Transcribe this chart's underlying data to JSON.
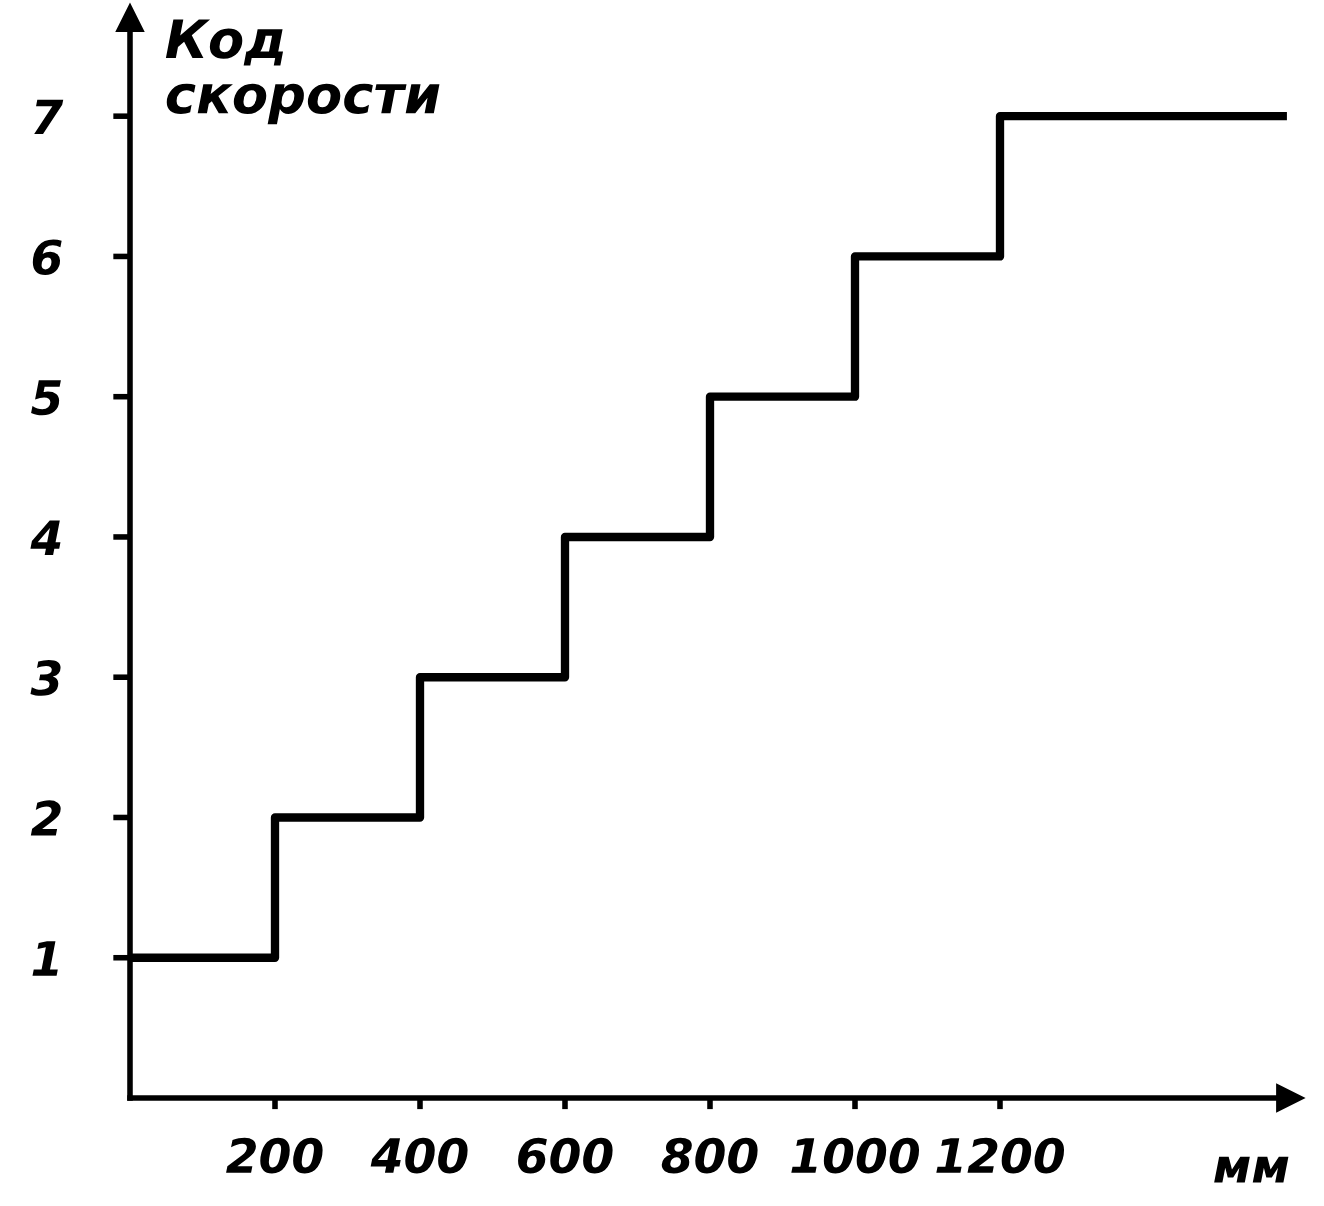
{
  "chart_data": {
    "type": "step",
    "xlabel": "мм",
    "ylabel": "Код\nскорости",
    "x": [
      0,
      200,
      400,
      600,
      800,
      1000,
      1200,
      1590
    ],
    "series": [
      {
        "color": "#000000",
        "values": [
          1,
          2,
          3,
          4,
          5,
          6,
          7,
          7
        ]
      }
    ],
    "xlim": [
      0,
      1600
    ],
    "ylim": [
      0,
      7.7
    ],
    "xticks": [
      200,
      400,
      600,
      800,
      1000,
      1200
    ],
    "yticks": [
      1,
      2,
      3,
      4,
      5,
      6,
      7
    ],
    "grid": false,
    "legend": false,
    "marker": "none",
    "line_style": "solid"
  }
}
